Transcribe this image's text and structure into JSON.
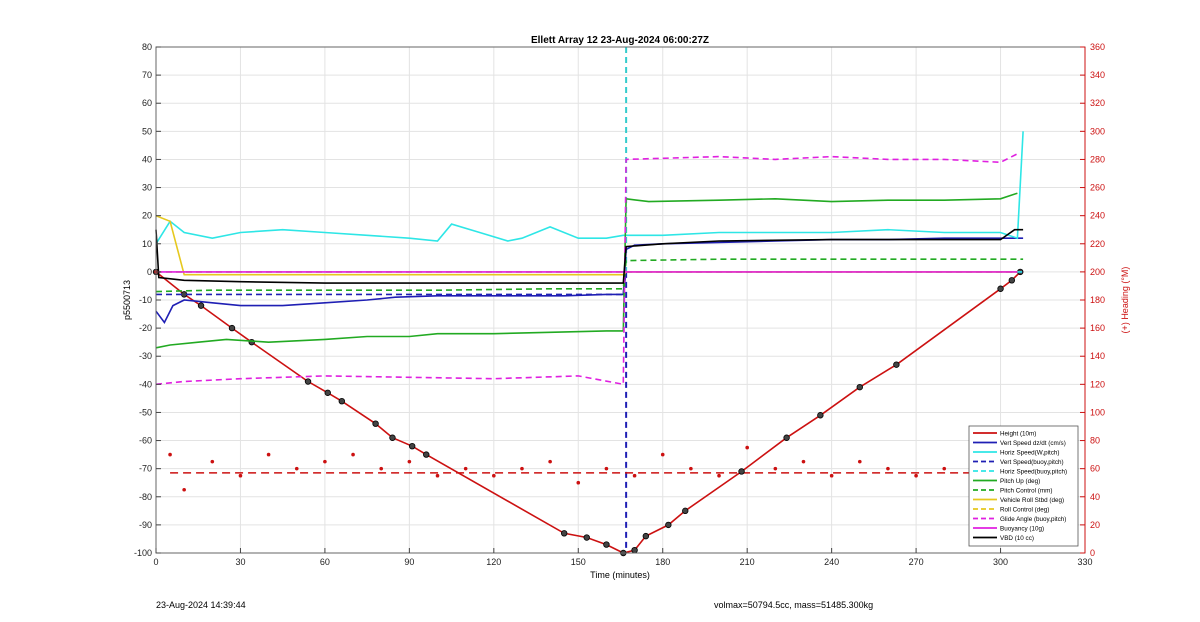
{
  "chart_data": {
    "type": "line",
    "title": "Ellett Array 12 23-Aug-2024 06:00:27Z",
    "xlabel": "Time (minutes)",
    "ylabel": "p5500713",
    "y2label": "(+) Heading (°M)",
    "xlim": [
      0,
      330
    ],
    "ylim": [
      -100,
      80
    ],
    "y2lim": [
      0,
      360
    ],
    "xticks": [
      0,
      30,
      60,
      90,
      120,
      150,
      180,
      210,
      240,
      270,
      300,
      330
    ],
    "yticks": [
      -100,
      -90,
      -80,
      -70,
      -60,
      -50,
      -40,
      -30,
      -20,
      -10,
      0,
      10,
      20,
      30,
      40,
      50,
      60,
      70,
      80
    ],
    "y2ticks": [
      0,
      20,
      40,
      60,
      80,
      100,
      120,
      140,
      160,
      180,
      200,
      220,
      240,
      260,
      280,
      300,
      320,
      340,
      360
    ],
    "grid": true,
    "legend_position": "bottom-right",
    "vlines": [
      {
        "x": 167,
        "y_from": 80,
        "y_to": 0,
        "color": "#33cccc"
      },
      {
        "x": 167,
        "y_from": 0,
        "y_to": -100,
        "color": "#1f1fb4"
      }
    ],
    "hlines": [
      {
        "y2": 57,
        "x_from": 5,
        "x_to": 310,
        "color": "#cc1111"
      }
    ],
    "series": [
      {
        "name": "Height (10m)",
        "color": "#cc1111",
        "style": "solid",
        "markers": true,
        "x": [
          0,
          10,
          16,
          27,
          34,
          54,
          61,
          66,
          78,
          84,
          91,
          96,
          145,
          153,
          160,
          166,
          170,
          174,
          182,
          188,
          208,
          224,
          236,
          250,
          263,
          300,
          304,
          307
        ],
        "y": [
          0,
          -8,
          -12,
          -20,
          -25,
          -39,
          -43,
          -46,
          -54,
          -59,
          -62,
          -65,
          -93,
          -94.5,
          -97,
          -100,
          -99,
          -94,
          -90,
          -85,
          -71,
          -59,
          -51,
          -41,
          -33,
          -6,
          -3,
          0
        ]
      },
      {
        "name": "Vert Speed dz/dt (cm/s)",
        "color": "#1f1fb4",
        "style": "solid",
        "x": [
          0,
          3,
          6,
          10,
          20,
          30,
          45,
          60,
          75,
          85,
          100,
          115,
          130,
          145,
          160,
          166,
          167,
          170,
          180,
          200,
          220,
          240,
          260,
          280,
          300,
          308
        ],
        "y": [
          -14,
          -18,
          -12,
          -10,
          -11,
          -12,
          -12,
          -11,
          -10,
          -9,
          -8.5,
          -8.5,
          -8.5,
          -8.5,
          -8,
          -8,
          8,
          9.5,
          10,
          10.5,
          11,
          11.5,
          11.5,
          12,
          12,
          12
        ]
      },
      {
        "name": "Horiz Speed(W,pitch)",
        "color": "#2ee6e6",
        "style": "solid",
        "x": [
          0,
          5,
          10,
          20,
          30,
          45,
          60,
          75,
          90,
          100,
          105,
          115,
          125,
          130,
          140,
          150,
          160,
          166,
          168,
          180,
          200,
          220,
          240,
          260,
          280,
          300,
          306,
          308
        ],
        "y": [
          10,
          18,
          14,
          12,
          14,
          15,
          14,
          13,
          12,
          11,
          17,
          14,
          11,
          12,
          16,
          12,
          12,
          13,
          13,
          13,
          14,
          14,
          14,
          15,
          14,
          14,
          12,
          50
        ]
      },
      {
        "name": "Vert Speed(buoy,pitch)",
        "color": "#1f1fb4",
        "style": "dashed",
        "x": [
          0,
          166,
          167,
          308
        ],
        "y": [
          -8,
          -8,
          0,
          0
        ]
      },
      {
        "name": "Horiz Speed(buoy,pitch)",
        "color": "#2ee6e6",
        "style": "dashed",
        "x": [
          0,
          166,
          167,
          308
        ],
        "y": [
          0,
          0,
          0,
          0
        ]
      },
      {
        "name": "Pitch Up (deg)",
        "color": "#22aa22",
        "style": "solid",
        "x": [
          0,
          5,
          15,
          25,
          40,
          60,
          75,
          90,
          100,
          120,
          140,
          160,
          166,
          167,
          175,
          200,
          220,
          240,
          260,
          280,
          300,
          306
        ],
        "y": [
          -27,
          -26,
          -25,
          -24,
          -25,
          -24,
          -23,
          -23,
          -22,
          -22,
          -21.5,
          -21,
          -21,
          26,
          25,
          25.5,
          26,
          25,
          25.5,
          25.5,
          26,
          28
        ]
      },
      {
        "name": "Pitch Control (mm)",
        "color": "#22aa22",
        "style": "dashed",
        "x": [
          0,
          20,
          60,
          100,
          140,
          166,
          167,
          200,
          240,
          280,
          308
        ],
        "y": [
          -7,
          -6.5,
          -6.5,
          -6.5,
          -6,
          -6,
          4,
          4.5,
          4.5,
          4.5,
          4.5
        ]
      },
      {
        "name": "Vehicle Roll Stbd (deg)",
        "color": "#e6c81e",
        "style": "solid",
        "x": [
          0,
          5,
          10,
          30,
          60,
          90,
          120,
          150,
          166,
          167,
          200,
          240,
          280,
          306
        ],
        "y": [
          20,
          18,
          -1,
          -1,
          -1,
          -1,
          -1,
          -1,
          -1,
          0,
          0,
          0,
          0,
          0
        ]
      },
      {
        "name": "Roll Control (deg)",
        "color": "#e6c81e",
        "style": "dashed",
        "x": [
          0,
          166,
          167,
          306
        ],
        "y": [
          0,
          0,
          0,
          0
        ]
      },
      {
        "name": "Glide Angle (buoy,pitch)",
        "color": "#e020e0",
        "style": "dashed",
        "x": [
          0,
          10,
          30,
          60,
          90,
          120,
          150,
          166,
          167,
          200,
          220,
          240,
          260,
          280,
          300,
          306
        ],
        "y": [
          -40,
          -39,
          -38,
          -37,
          -37.5,
          -38,
          -37,
          -40,
          40,
          41,
          40,
          41,
          40,
          40,
          39,
          42
        ]
      },
      {
        "name": "Buoyancy (10g)",
        "color": "#e020e0",
        "style": "solid",
        "x": [
          0,
          166,
          167,
          306
        ],
        "y": [
          0,
          0,
          0,
          0
        ]
      },
      {
        "name": "VBD (10 cc)",
        "color": "#000000",
        "style": "solid",
        "x": [
          0,
          1,
          10,
          30,
          60,
          90,
          120,
          150,
          166,
          167,
          180,
          200,
          240,
          280,
          300,
          305,
          308
        ],
        "y": [
          15,
          -2,
          -3,
          -3.5,
          -4,
          -4,
          -4,
          -4,
          -4,
          9,
          10,
          11,
          11.5,
          11.5,
          11.5,
          15,
          15
        ]
      },
      {
        "name": "Heading",
        "color": "#cc1111",
        "style": "dots",
        "axis": "y2",
        "x": [
          0,
          5,
          10,
          20,
          30,
          40,
          50,
          60,
          70,
          80,
          90,
          100,
          110,
          120,
          130,
          140,
          150,
          160,
          170,
          180,
          190,
          200,
          210,
          220,
          230,
          240,
          250,
          260,
          270,
          280,
          290,
          300,
          305
        ],
        "y": [
          200,
          70,
          45,
          65,
          55,
          70,
          60,
          65,
          70,
          60,
          65,
          55,
          60,
          55,
          60,
          65,
          50,
          60,
          55,
          70,
          60,
          55,
          75,
          60,
          65,
          55,
          65,
          60,
          55,
          60,
          60,
          65,
          75
        ]
      }
    ]
  },
  "footer": {
    "left": "23-Aug-2024 14:39:44",
    "right": "volmax=50794.5cc, mass=51485.300kg"
  }
}
